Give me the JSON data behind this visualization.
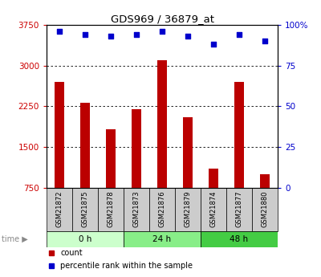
{
  "title": "GDS969 / 36879_at",
  "samples": [
    "GSM21872",
    "GSM21875",
    "GSM21878",
    "GSM21873",
    "GSM21876",
    "GSM21879",
    "GSM21874",
    "GSM21877",
    "GSM21880"
  ],
  "counts": [
    2700,
    2320,
    1820,
    2200,
    3100,
    2050,
    1100,
    2700,
    1000
  ],
  "percentiles": [
    96,
    94,
    93,
    94,
    96,
    93,
    88,
    94,
    90
  ],
  "groups": [
    {
      "label": "0 h",
      "indices": [
        0,
        1,
        2
      ],
      "color": "#ccffcc"
    },
    {
      "label": "24 h",
      "indices": [
        3,
        4,
        5
      ],
      "color": "#88ee88"
    },
    {
      "label": "48 h",
      "indices": [
        6,
        7,
        8
      ],
      "color": "#44cc44"
    }
  ],
  "bar_color": "#bb0000",
  "dot_color": "#0000cc",
  "left_ylim": [
    750,
    3750
  ],
  "left_yticks": [
    750,
    1500,
    2250,
    3000,
    3750
  ],
  "right_ylim": [
    0,
    100
  ],
  "right_yticks": [
    0,
    25,
    50,
    75,
    100
  ],
  "right_yticklabels": [
    "0",
    "25",
    "50",
    "75",
    "100%"
  ],
  "bg_color": "#ffffff",
  "plot_bg": "#ffffff",
  "grid_color": "#000000",
  "label_color_left": "#cc0000",
  "label_color_right": "#0000cc",
  "sample_bg_color": "#cccccc"
}
